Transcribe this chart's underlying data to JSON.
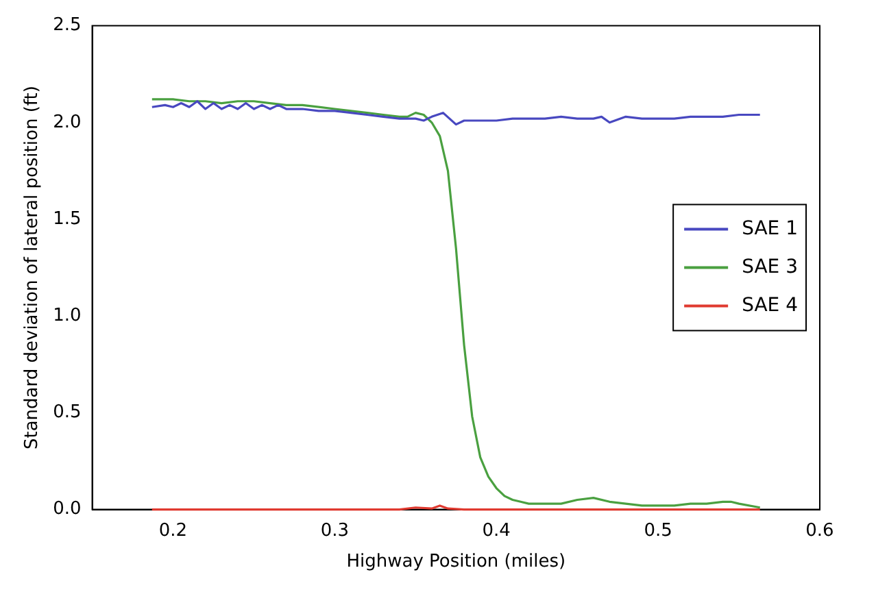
{
  "chart_data": {
    "type": "line",
    "xlabel": "Highway Position (miles)",
    "ylabel": "Standard deviation of lateral position (ft)",
    "xlim": [
      0.15,
      0.6
    ],
    "xticks": [
      0.2,
      0.3,
      0.4,
      0.5,
      0.6
    ],
    "ylim": [
      0,
      2.5
    ],
    "yticks": [
      {
        "value": 0,
        "label": "0.0"
      },
      {
        "value": 0.5,
        "label": "0.5"
      },
      {
        "value": 1,
        "label": "1.0"
      },
      {
        "value": 1.5,
        "label": "1.5"
      },
      {
        "value": 2,
        "label": "2.0"
      },
      {
        "value": 2.5,
        "label": "2.5"
      }
    ],
    "grid": false,
    "legend": "center right",
    "marker": "none",
    "line_style": "solid",
    "series": [
      {
        "name": "SAE 1",
        "color": "#4848c0",
        "x": [
          0.187,
          0.195,
          0.2,
          0.205,
          0.21,
          0.215,
          0.22,
          0.225,
          0.23,
          0.235,
          0.24,
          0.245,
          0.25,
          0.255,
          0.26,
          0.265,
          0.27,
          0.28,
          0.29,
          0.3,
          0.31,
          0.32,
          0.33,
          0.34,
          0.35,
          0.355,
          0.36,
          0.367,
          0.375,
          0.38,
          0.39,
          0.4,
          0.41,
          0.42,
          0.43,
          0.44,
          0.45,
          0.46,
          0.465,
          0.47,
          0.48,
          0.49,
          0.5,
          0.51,
          0.52,
          0.53,
          0.54,
          0.55,
          0.563
        ],
        "values": [
          2.08,
          2.09,
          2.08,
          2.1,
          2.08,
          2.11,
          2.07,
          2.1,
          2.07,
          2.09,
          2.07,
          2.1,
          2.07,
          2.09,
          2.07,
          2.09,
          2.07,
          2.07,
          2.06,
          2.06,
          2.05,
          2.04,
          2.03,
          2.02,
          2.02,
          2.01,
          2.03,
          2.05,
          1.99,
          2.01,
          2.01,
          2.01,
          2.02,
          2.02,
          2.02,
          2.03,
          2.02,
          2.02,
          2.03,
          2.0,
          2.03,
          2.02,
          2.02,
          2.02,
          2.03,
          2.03,
          2.03,
          2.04,
          2.04
        ]
      },
      {
        "name": "SAE 3",
        "color": "#4aa040",
        "x": [
          0.187,
          0.2,
          0.21,
          0.22,
          0.23,
          0.24,
          0.25,
          0.26,
          0.27,
          0.28,
          0.29,
          0.3,
          0.31,
          0.32,
          0.33,
          0.34,
          0.345,
          0.35,
          0.355,
          0.36,
          0.365,
          0.37,
          0.375,
          0.38,
          0.385,
          0.39,
          0.395,
          0.4,
          0.405,
          0.41,
          0.415,
          0.42,
          0.43,
          0.44,
          0.45,
          0.46,
          0.47,
          0.48,
          0.49,
          0.5,
          0.51,
          0.52,
          0.53,
          0.54,
          0.545,
          0.55,
          0.563
        ],
        "values": [
          2.12,
          2.12,
          2.11,
          2.11,
          2.1,
          2.11,
          2.11,
          2.1,
          2.09,
          2.09,
          2.08,
          2.07,
          2.06,
          2.05,
          2.04,
          2.03,
          2.03,
          2.05,
          2.04,
          2.0,
          1.93,
          1.75,
          1.35,
          0.85,
          0.48,
          0.27,
          0.17,
          0.11,
          0.07,
          0.05,
          0.04,
          0.03,
          0.03,
          0.03,
          0.05,
          0.06,
          0.04,
          0.03,
          0.02,
          0.02,
          0.02,
          0.03,
          0.03,
          0.04,
          0.04,
          0.03,
          0.01
        ]
      },
      {
        "name": "SAE 4",
        "color": "#e03a30",
        "x": [
          0.187,
          0.25,
          0.3,
          0.34,
          0.35,
          0.36,
          0.365,
          0.37,
          0.38,
          0.4,
          0.45,
          0.5,
          0.563
        ],
        "values": [
          0,
          0,
          0,
          0,
          0.01,
          0.005,
          0.02,
          0.005,
          0,
          0,
          0,
          0,
          0
        ]
      }
    ]
  }
}
